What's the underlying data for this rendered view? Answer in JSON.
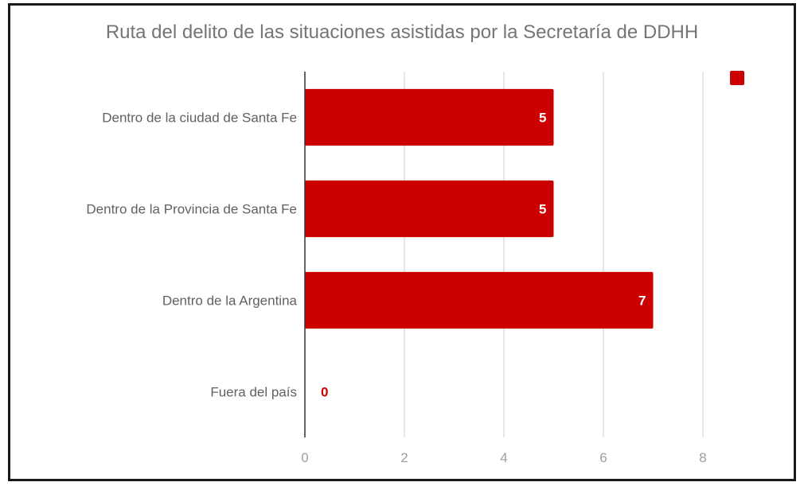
{
  "chart_data": {
    "type": "bar",
    "orientation": "horizontal",
    "title": "Ruta del delito de las situaciones asistidas por  la Secretaría de DDHH",
    "categories": [
      "Dentro de la ciudad de Santa Fe",
      "Dentro de la Provincia de Santa Fe",
      "Dentro de la Argentina",
      "Fuera del país"
    ],
    "values": [
      5,
      5,
      7,
      0
    ],
    "data_labels": [
      "5",
      "5",
      "7",
      "0"
    ],
    "x_ticks": [
      "0",
      "2",
      "4",
      "6",
      "8"
    ],
    "xlim": [
      0,
      8
    ],
    "xlabel": "",
    "ylabel": "",
    "grid": true,
    "legend_position": "top-right",
    "colors": {
      "bar": "#cc0000",
      "grid": "#cccccc",
      "axis": "#333333"
    }
  }
}
